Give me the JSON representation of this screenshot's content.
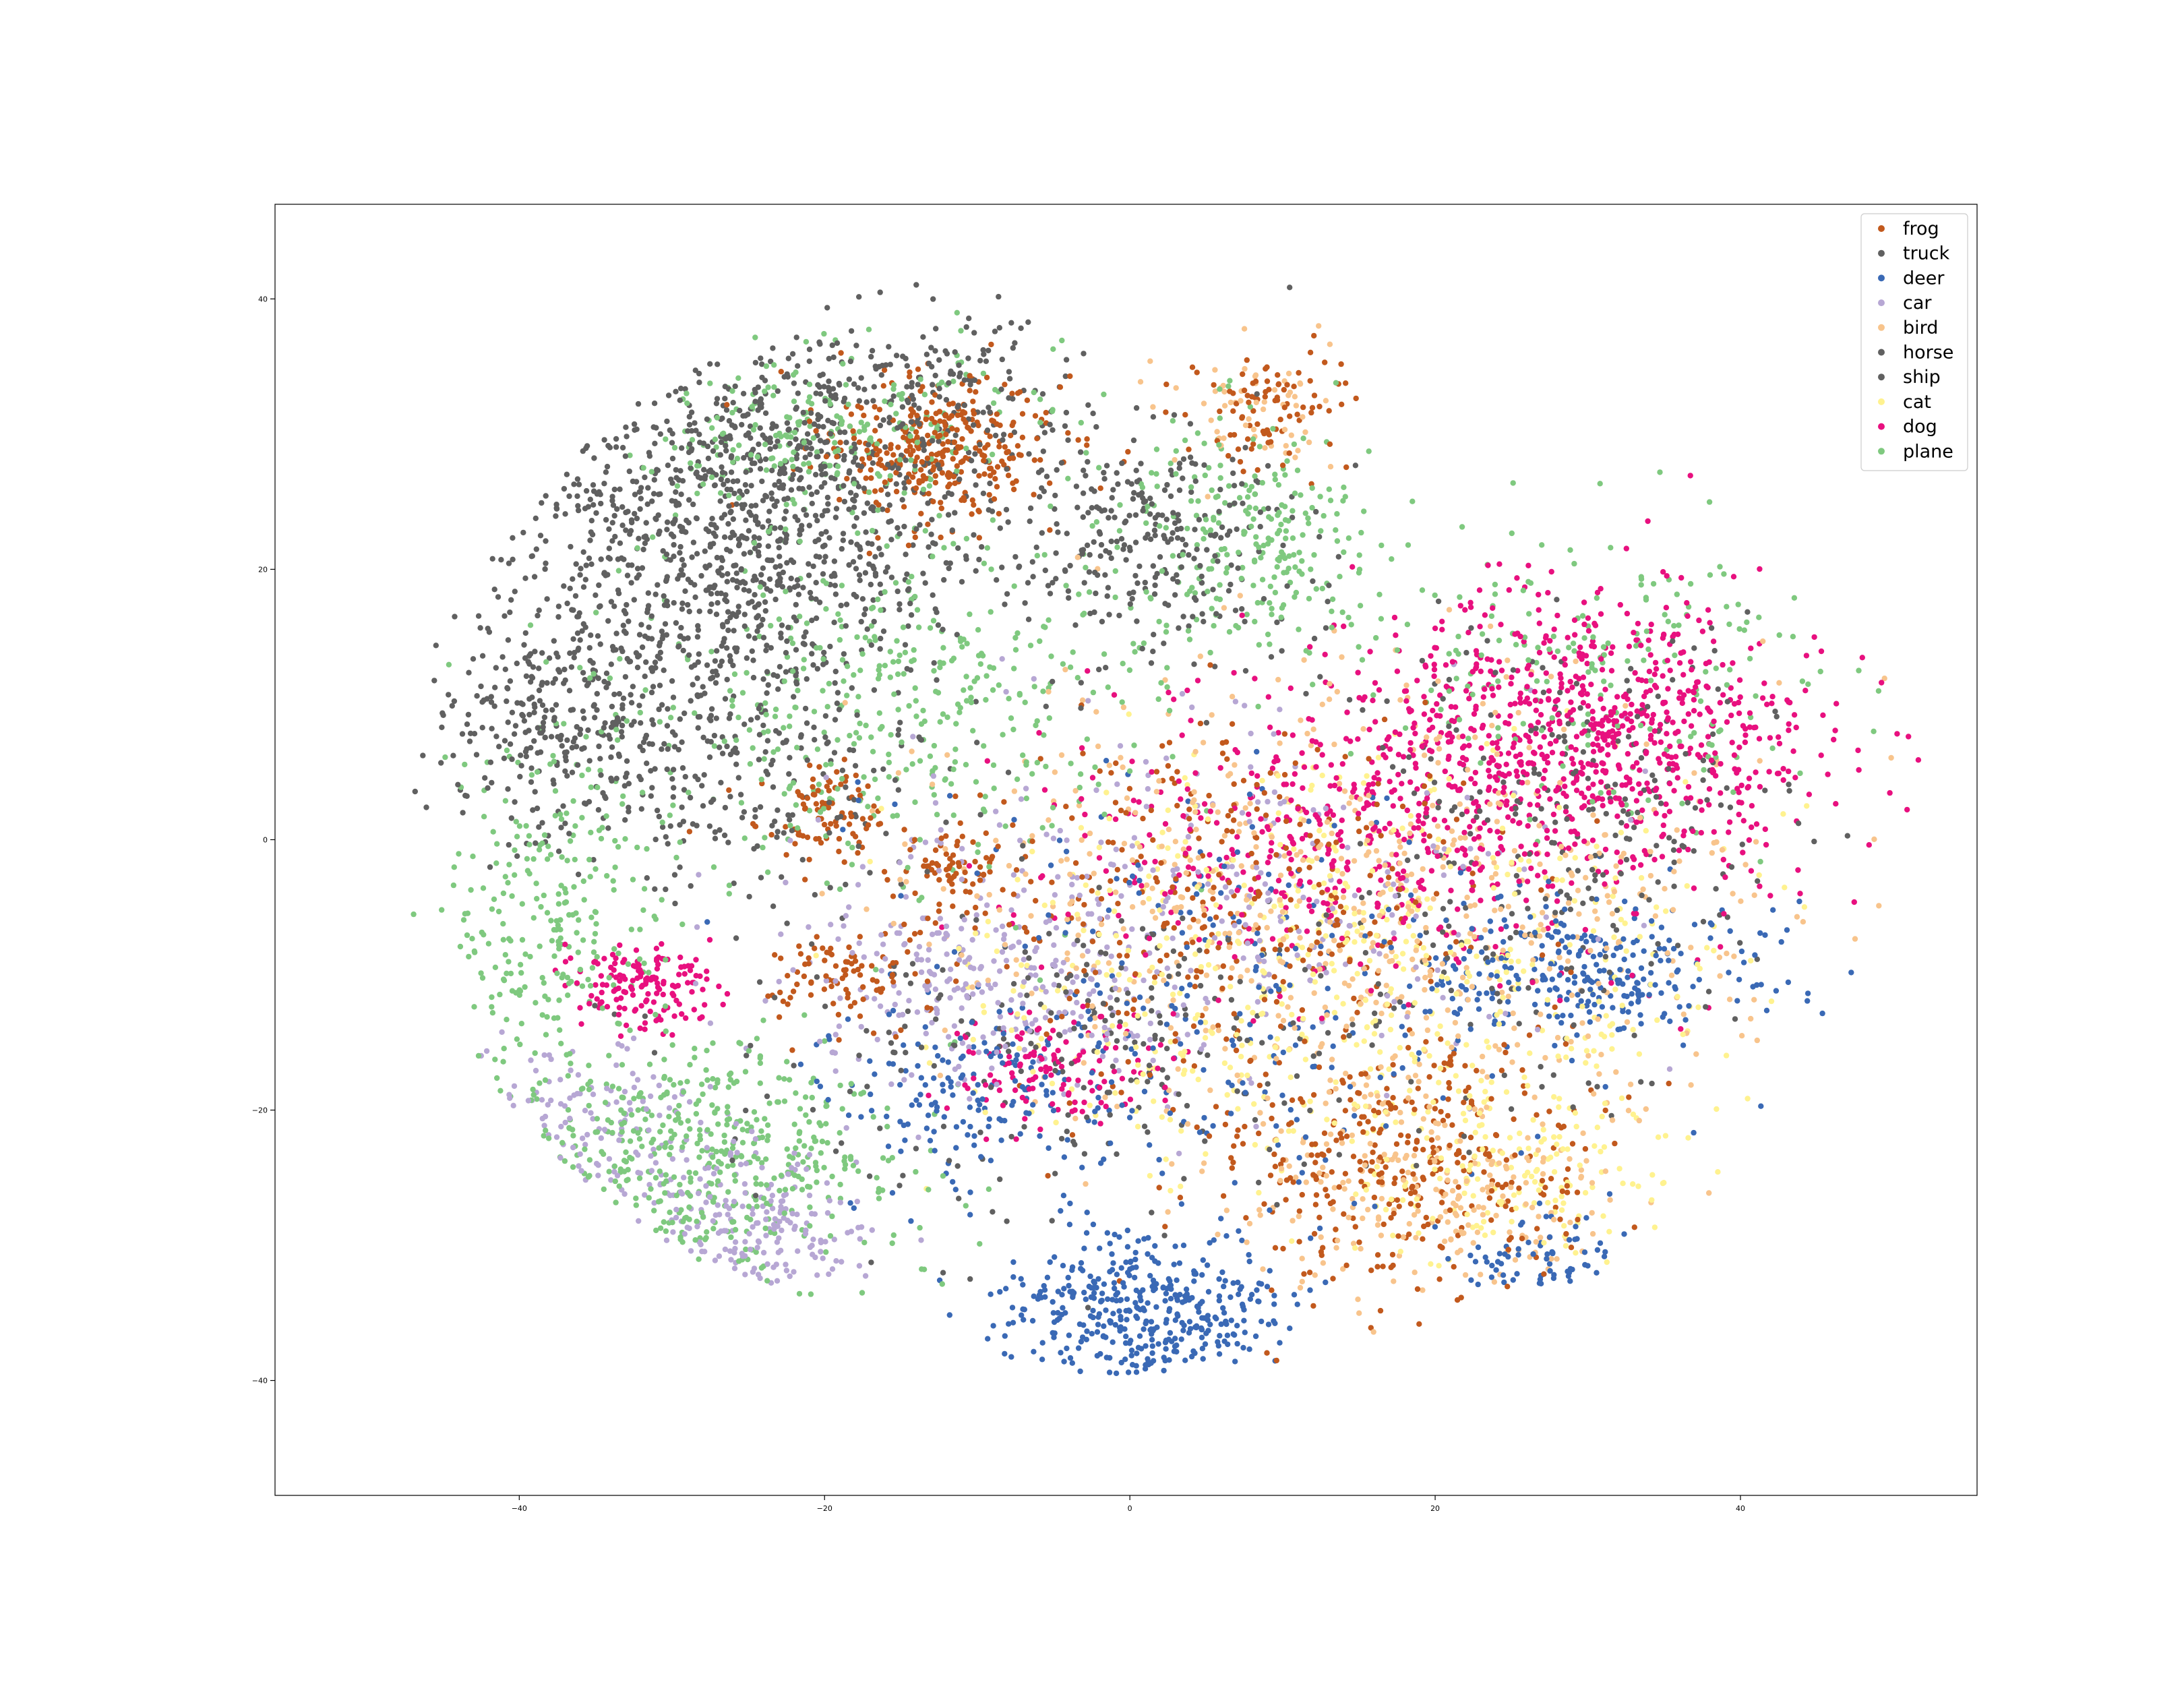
{
  "chart_data": {
    "type": "scatter",
    "title": "",
    "xlabel": "",
    "ylabel": "",
    "xlim": [
      -56,
      55.5
    ],
    "ylim": [
      -48.5,
      47
    ],
    "grid": false,
    "legend_placement": "top-right",
    "x_ticks": [
      -40,
      -20,
      0,
      20,
      40
    ],
    "y_ticks": [
      -40,
      -20,
      0,
      20,
      40
    ],
    "x_tick_labels": [
      "−40",
      "−20",
      "0",
      "20",
      "40"
    ],
    "y_tick_labels": [
      "−40",
      "−20",
      "0",
      "20",
      "40"
    ],
    "series": [
      {
        "name": "frog",
        "color": "#c2591d",
        "regions": [
          {
            "x": -13,
            "y": 29,
            "rx": 7,
            "ry": 5,
            "n": 330
          },
          {
            "x": -20,
            "y": 2,
            "rx": 4,
            "ry": 3,
            "n": 90
          },
          {
            "x": -12,
            "y": -2,
            "rx": 4,
            "ry": 3,
            "n": 70
          },
          {
            "x": -19,
            "y": -10,
            "rx": 5,
            "ry": 3,
            "n": 90
          },
          {
            "x": 18,
            "y": -24,
            "rx": 12,
            "ry": 9,
            "n": 360
          },
          {
            "x": 5,
            "y": -5,
            "rx": 16,
            "ry": 12,
            "n": 320
          },
          {
            "x": 9,
            "y": 32,
            "rx": 5,
            "ry": 4,
            "n": 90
          }
        ]
      },
      {
        "name": "truck",
        "color": "#606060",
        "regions": [
          {
            "x": -25,
            "y": 24,
            "rx": 14,
            "ry": 12,
            "n": 1000
          },
          {
            "x": -38,
            "y": 9,
            "rx": 7,
            "ry": 7,
            "n": 220
          },
          {
            "x": 1,
            "y": 22,
            "rx": 9,
            "ry": 8,
            "n": 300
          }
        ]
      },
      {
        "name": "deer",
        "color": "#3a69b5",
        "regions": [
          {
            "x": 1,
            "y": -35,
            "rx": 8,
            "ry": 5,
            "n": 420
          },
          {
            "x": 30,
            "y": -10,
            "rx": 10,
            "ry": 5,
            "n": 280
          },
          {
            "x": -10,
            "y": -19,
            "rx": 10,
            "ry": 6,
            "n": 150
          },
          {
            "x": 27,
            "y": -31,
            "rx": 4,
            "ry": 3,
            "n": 70
          },
          {
            "x": 5,
            "y": -12,
            "rx": 20,
            "ry": 14,
            "n": 250
          }
        ]
      },
      {
        "name": "car",
        "color": "#b7a7d4",
        "regions": [
          {
            "x": -25,
            "y": -28,
            "rx": 8,
            "ry": 5,
            "n": 240
          },
          {
            "x": -35,
            "y": -20,
            "rx": 6,
            "ry": 5,
            "n": 120
          },
          {
            "x": -10,
            "y": -10,
            "rx": 12,
            "ry": 7,
            "n": 250
          },
          {
            "x": 5,
            "y": -5,
            "rx": 20,
            "ry": 12,
            "n": 250
          }
        ]
      },
      {
        "name": "bird",
        "color": "#f8c48c",
        "regions": [
          {
            "x": 15,
            "y": -5,
            "rx": 25,
            "ry": 15,
            "n": 650
          },
          {
            "x": 20,
            "y": -26,
            "rx": 12,
            "ry": 7,
            "n": 220
          },
          {
            "x": 8,
            "y": 32,
            "rx": 5,
            "ry": 4,
            "n": 60
          }
        ]
      },
      {
        "name": "horse",
        "color": "#606060",
        "regions": [
          {
            "x": 0,
            "y": -15,
            "rx": 25,
            "ry": 12,
            "n": 300
          },
          {
            "x": 30,
            "y": 2,
            "rx": 12,
            "ry": 12,
            "n": 250
          },
          {
            "x": -25,
            "y": 5,
            "rx": 12,
            "ry": 10,
            "n": 200
          }
        ]
      },
      {
        "name": "ship",
        "color": "#606060",
        "regions": [
          {
            "x": -30,
            "y": 15,
            "rx": 12,
            "ry": 12,
            "n": 300
          },
          {
            "x": -15,
            "y": 32,
            "rx": 10,
            "ry": 6,
            "n": 200
          }
        ]
      },
      {
        "name": "cat",
        "color": "#fff28f",
        "regions": [
          {
            "x": 15,
            "y": -10,
            "rx": 22,
            "ry": 14,
            "n": 550
          },
          {
            "x": 25,
            "y": -25,
            "rx": 10,
            "ry": 6,
            "n": 150
          }
        ]
      },
      {
        "name": "dog",
        "color": "#e8107f",
        "regions": [
          {
            "x": 30,
            "y": 8,
            "rx": 14,
            "ry": 9,
            "n": 800
          },
          {
            "x": 15,
            "y": 0,
            "rx": 18,
            "ry": 10,
            "n": 450
          },
          {
            "x": -32,
            "y": -11,
            "rx": 4,
            "ry": 3,
            "n": 150
          },
          {
            "x": -5,
            "y": -17,
            "rx": 6,
            "ry": 4,
            "n": 120
          }
        ]
      },
      {
        "name": "plane",
        "color": "#7fc97f",
        "regions": [
          {
            "x": -28,
            "y": -24,
            "rx": 12,
            "ry": 8,
            "n": 550
          },
          {
            "x": -38,
            "y": -6,
            "rx": 6,
            "ry": 14,
            "n": 280
          },
          {
            "x": -15,
            "y": 10,
            "rx": 15,
            "ry": 12,
            "n": 400
          },
          {
            "x": 8,
            "y": 22,
            "rx": 8,
            "ry": 8,
            "n": 250
          },
          {
            "x": -20,
            "y": 30,
            "rx": 12,
            "ry": 6,
            "n": 250
          },
          {
            "x": 30,
            "y": 12,
            "rx": 14,
            "ry": 10,
            "n": 200
          }
        ]
      }
    ]
  }
}
